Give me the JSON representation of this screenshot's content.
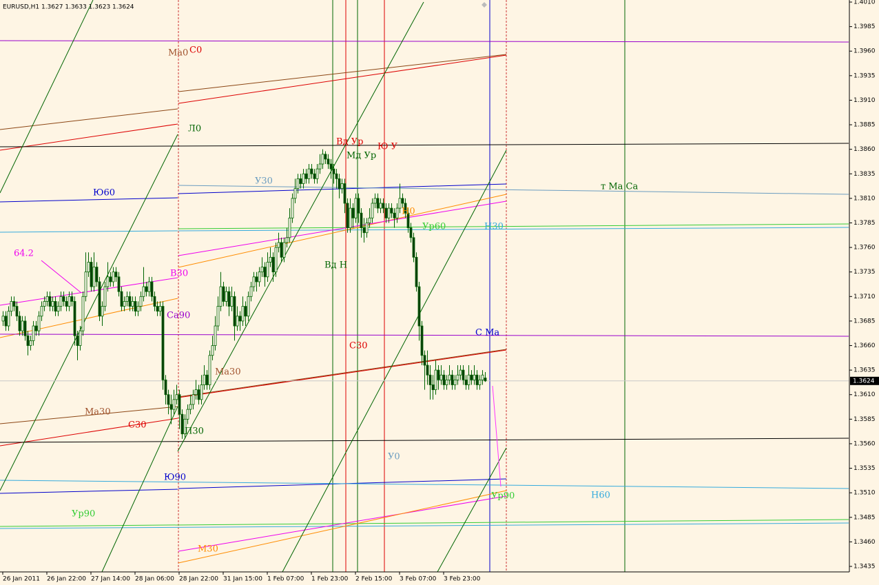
{
  "chart_data": {
    "type": "candlestick",
    "title": "EURUSD,H1  1.3627 1.3633 1.3623 1.3624",
    "color": "#006400",
    "up_fill": "#fff8ee",
    "down_fill": "#0a3d0a",
    "bid": 1.3624,
    "ylim": [
      1.3435,
      1.401
    ],
    "yticks": [
      1.3435,
      {
        "value": 1.346,
        "label": "1.3460"
      },
      1.3485,
      {
        "value": 1.351,
        "label": "1.3510"
      },
      1.3535,
      {
        "value": 1.356,
        "label": "1.3560"
      },
      1.3585,
      {
        "value": 1.361,
        "label": "1.3610"
      },
      1.3635,
      {
        "value": 1.366,
        "label": "1.3660"
      },
      1.3685,
      {
        "value": 1.371,
        "label": "1.3710"
      },
      1.3735,
      {
        "value": 1.376,
        "label": "1.3760"
      },
      1.3785,
      {
        "value": 1.381,
        "label": "1.3810"
      },
      1.3835,
      {
        "value": 1.386,
        "label": "1.3860"
      },
      1.3885,
      {
        "value": 1.391,
        "label": "1.3910"
      },
      1.3935,
      {
        "value": 1.396,
        "label": "1.3960"
      },
      1.3985,
      {
        "value": 1.401,
        "label": "1.4010"
      }
    ],
    "xlim": [
      -1,
      307
    ],
    "xticks": [
      {
        "value": 0,
        "label": "26 Jan 2011"
      },
      {
        "value": 16,
        "label": "26 Jan 22:00"
      },
      {
        "value": 32,
        "label": "27 Jan 14:00"
      },
      {
        "value": 48,
        "label": "28 Jan 06:00"
      },
      {
        "value": 64,
        "label": "28 Jan 22:00"
      },
      {
        "value": 80,
        "label": "31 Jan 15:00"
      },
      {
        "value": 96,
        "label": "1 Feb 07:00"
      },
      {
        "value": 112,
        "label": "1 Feb 23:00"
      },
      {
        "value": 128,
        "label": "2 Feb 15:00"
      },
      {
        "value": 144,
        "label": "3 Feb 07:00"
      },
      {
        "value": 160,
        "label": "3 Feb 23:00"
      }
    ],
    "candles": [
      [
        1.3685,
        1.3695,
        1.368,
        1.369
      ],
      [
        1.369,
        1.3695,
        1.3675,
        1.368
      ],
      [
        1.368,
        1.37,
        1.3675,
        1.3695
      ],
      [
        1.3695,
        1.371,
        1.369,
        1.3705
      ],
      [
        1.3705,
        1.371,
        1.3695,
        1.37
      ],
      [
        1.37,
        1.3705,
        1.3685,
        1.369
      ],
      [
        1.369,
        1.3695,
        1.367,
        1.3675
      ],
      [
        1.3675,
        1.369,
        1.367,
        1.3685
      ],
      [
        1.3685,
        1.369,
        1.3665,
        1.367
      ],
      [
        1.367,
        1.3675,
        1.365,
        1.366
      ],
      [
        1.366,
        1.367,
        1.3655,
        1.3665
      ],
      [
        1.3665,
        1.3685,
        1.366,
        1.368
      ],
      [
        1.368,
        1.3685,
        1.367,
        1.3675
      ],
      [
        1.3675,
        1.3695,
        1.367,
        1.369
      ],
      [
        1.369,
        1.3705,
        1.3685,
        1.37
      ],
      [
        1.37,
        1.371,
        1.3695,
        1.3705
      ],
      [
        1.3705,
        1.3715,
        1.37,
        1.371
      ],
      [
        1.371,
        1.3715,
        1.3695,
        1.37
      ],
      [
        1.37,
        1.371,
        1.3695,
        1.3705
      ],
      [
        1.3705,
        1.371,
        1.369,
        1.3695
      ],
      [
        1.3695,
        1.3705,
        1.369,
        1.37
      ],
      [
        1.37,
        1.3715,
        1.3695,
        1.371
      ],
      [
        1.371,
        1.3715,
        1.37,
        1.3705
      ],
      [
        1.3705,
        1.371,
        1.3695,
        1.37
      ],
      [
        1.37,
        1.3715,
        1.3695,
        1.371
      ],
      [
        1.371,
        1.3715,
        1.37,
        1.3705
      ],
      [
        1.3705,
        1.371,
        1.366,
        1.367
      ],
      [
        1.367,
        1.3675,
        1.3645,
        1.366
      ],
      [
        1.366,
        1.368,
        1.3655,
        1.3675
      ],
      [
        1.3675,
        1.3715,
        1.367,
        1.371
      ],
      [
        1.371,
        1.3755,
        1.3705,
        1.3735
      ],
      [
        1.3735,
        1.3755,
        1.373,
        1.3745
      ],
      [
        1.3745,
        1.375,
        1.3715,
        1.372
      ],
      [
        1.372,
        1.3755,
        1.3715,
        1.374
      ],
      [
        1.374,
        1.3745,
        1.372,
        1.3725
      ],
      [
        1.3725,
        1.373,
        1.3685,
        1.369
      ],
      [
        1.369,
        1.3705,
        1.368,
        1.37
      ],
      [
        1.37,
        1.3725,
        1.3695,
        1.372
      ],
      [
        1.372,
        1.3745,
        1.3715,
        1.373
      ],
      [
        1.373,
        1.3735,
        1.372,
        1.3725
      ],
      [
        1.3725,
        1.374,
        1.372,
        1.3735
      ],
      [
        1.3735,
        1.374,
        1.3725,
        1.373
      ],
      [
        1.373,
        1.3735,
        1.371,
        1.3715
      ],
      [
        1.3715,
        1.372,
        1.3695,
        1.37
      ],
      [
        1.37,
        1.371,
        1.3695,
        1.3705
      ],
      [
        1.3705,
        1.3715,
        1.37,
        1.371
      ],
      [
        1.371,
        1.3715,
        1.3695,
        1.37
      ],
      [
        1.37,
        1.371,
        1.3695,
        1.3705
      ],
      [
        1.3705,
        1.371,
        1.369,
        1.3695
      ],
      [
        1.3695,
        1.3705,
        1.369,
        1.37
      ],
      [
        1.37,
        1.3715,
        1.3695,
        1.371
      ],
      [
        1.371,
        1.374,
        1.3705,
        1.372
      ],
      [
        1.372,
        1.3725,
        1.371,
        1.3715
      ],
      [
        1.3715,
        1.373,
        1.371,
        1.3725
      ],
      [
        1.3725,
        1.373,
        1.3705,
        1.371
      ],
      [
        1.371,
        1.3715,
        1.3695,
        1.37
      ],
      [
        1.37,
        1.3705,
        1.369,
        1.3695
      ],
      [
        1.3695,
        1.3705,
        1.369,
        1.37
      ],
      [
        1.37,
        1.3705,
        1.3615,
        1.3625
      ],
      [
        1.3625,
        1.363,
        1.36,
        1.361
      ],
      [
        1.361,
        1.3615,
        1.359,
        1.36
      ],
      [
        1.36,
        1.361,
        1.358,
        1.3595
      ],
      [
        1.3595,
        1.3615,
        1.359,
        1.3605
      ],
      [
        1.3605,
        1.362,
        1.36,
        1.361
      ],
      [
        1.361,
        1.3615,
        1.3575,
        1.359
      ],
      [
        1.359,
        1.3595,
        1.3565,
        1.357
      ],
      [
        1.357,
        1.359,
        1.3565,
        1.3585
      ],
      [
        1.3585,
        1.36,
        1.358,
        1.3595
      ],
      [
        1.3595,
        1.361,
        1.359,
        1.36
      ],
      [
        1.36,
        1.3615,
        1.3595,
        1.361
      ],
      [
        1.361,
        1.3625,
        1.3605,
        1.3615
      ],
      [
        1.3615,
        1.362,
        1.36,
        1.3605
      ],
      [
        1.3605,
        1.363,
        1.36,
        1.362
      ],
      [
        1.362,
        1.364,
        1.3615,
        1.363
      ],
      [
        1.363,
        1.3635,
        1.3615,
        1.362
      ],
      [
        1.362,
        1.3655,
        1.3615,
        1.365
      ],
      [
        1.365,
        1.367,
        1.3645,
        1.366
      ],
      [
        1.366,
        1.369,
        1.3655,
        1.368
      ],
      [
        1.368,
        1.371,
        1.3675,
        1.37
      ],
      [
        1.37,
        1.3735,
        1.3695,
        1.372
      ],
      [
        1.372,
        1.3725,
        1.37,
        1.3705
      ],
      [
        1.3705,
        1.372,
        1.37,
        1.3715
      ],
      [
        1.3715,
        1.372,
        1.369,
        1.37
      ],
      [
        1.37,
        1.372,
        1.3695,
        1.371
      ],
      [
        1.371,
        1.3715,
        1.3665,
        1.368
      ],
      [
        1.368,
        1.37,
        1.3675,
        1.369
      ],
      [
        1.369,
        1.3695,
        1.3675,
        1.3685
      ],
      [
        1.3685,
        1.371,
        1.368,
        1.37
      ],
      [
        1.37,
        1.3705,
        1.368,
        1.369
      ],
      [
        1.369,
        1.3715,
        1.3685,
        1.371
      ],
      [
        1.371,
        1.3725,
        1.3705,
        1.372
      ],
      [
        1.372,
        1.3735,
        1.3715,
        1.373
      ],
      [
        1.373,
        1.3735,
        1.3715,
        1.3725
      ],
      [
        1.3725,
        1.374,
        1.372,
        1.3735
      ],
      [
        1.3735,
        1.375,
        1.373,
        1.374
      ],
      [
        1.374,
        1.3745,
        1.372,
        1.373
      ],
      [
        1.373,
        1.3755,
        1.3725,
        1.3745
      ],
      [
        1.3745,
        1.376,
        1.374,
        1.375
      ],
      [
        1.375,
        1.3755,
        1.3725,
        1.3735
      ],
      [
        1.3735,
        1.3765,
        1.373,
        1.376
      ],
      [
        1.376,
        1.3775,
        1.3755,
        1.3765
      ],
      [
        1.3765,
        1.377,
        1.3745,
        1.375
      ],
      [
        1.375,
        1.377,
        1.3745,
        1.3765
      ],
      [
        1.3765,
        1.378,
        1.376,
        1.377
      ],
      [
        1.377,
        1.38,
        1.3765,
        1.379
      ],
      [
        1.379,
        1.3815,
        1.3785,
        1.381
      ],
      [
        1.381,
        1.383,
        1.3805,
        1.382
      ],
      [
        1.382,
        1.3835,
        1.3815,
        1.383
      ],
      [
        1.383,
        1.3835,
        1.382,
        1.3825
      ],
      [
        1.3825,
        1.384,
        1.382,
        1.3835
      ],
      [
        1.3835,
        1.384,
        1.3825,
        1.383
      ],
      [
        1.383,
        1.3845,
        1.3825,
        1.384
      ],
      [
        1.384,
        1.3845,
        1.383,
        1.3835
      ],
      [
        1.3835,
        1.384,
        1.3825,
        1.383
      ],
      [
        1.383,
        1.3845,
        1.3825,
        1.384
      ],
      [
        1.384,
        1.3855,
        1.3835,
        1.3845
      ],
      [
        1.3845,
        1.386,
        1.384,
        1.3855
      ],
      [
        1.3855,
        1.3858,
        1.3845,
        1.385
      ],
      [
        1.385,
        1.3855,
        1.384,
        1.3845
      ],
      [
        1.3845,
        1.385,
        1.383,
        1.384
      ],
      [
        1.384,
        1.3845,
        1.3825,
        1.3835
      ],
      [
        1.3835,
        1.384,
        1.382,
        1.383
      ],
      [
        1.383,
        1.3835,
        1.381,
        1.382
      ],
      [
        1.382,
        1.383,
        1.3815,
        1.3825
      ],
      [
        1.3825,
        1.383,
        1.3795,
        1.3805
      ],
      [
        1.3805,
        1.381,
        1.3775,
        1.378
      ],
      [
        1.378,
        1.381,
        1.3775,
        1.38
      ],
      [
        1.38,
        1.3805,
        1.378,
        1.379
      ],
      [
        1.379,
        1.3815,
        1.3785,
        1.381
      ],
      [
        1.381,
        1.3815,
        1.3785,
        1.3795
      ],
      [
        1.3795,
        1.38,
        1.377,
        1.378
      ],
      [
        1.378,
        1.379,
        1.3765,
        1.3775
      ],
      [
        1.3775,
        1.379,
        1.377,
        1.3785
      ],
      [
        1.3785,
        1.38,
        1.378,
        1.379
      ],
      [
        1.379,
        1.381,
        1.3785,
        1.3805
      ],
      [
        1.3805,
        1.3815,
        1.38,
        1.381
      ],
      [
        1.381,
        1.3815,
        1.3795,
        1.38
      ],
      [
        1.38,
        1.381,
        1.3795,
        1.3805
      ],
      [
        1.3805,
        1.381,
        1.3795,
        1.38
      ],
      [
        1.38,
        1.3805,
        1.3785,
        1.379
      ],
      [
        1.379,
        1.3805,
        1.3785,
        1.38
      ],
      [
        1.38,
        1.3805,
        1.379,
        1.3795
      ],
      [
        1.3795,
        1.38,
        1.378,
        1.379
      ],
      [
        1.379,
        1.3805,
        1.3785,
        1.38
      ],
      [
        1.38,
        1.3825,
        1.3795,
        1.381
      ],
      [
        1.381,
        1.3815,
        1.38,
        1.3805
      ],
      [
        1.3805,
        1.381,
        1.379,
        1.3795
      ],
      [
        1.3795,
        1.38,
        1.3775,
        1.378
      ],
      [
        1.378,
        1.3785,
        1.3765,
        1.377
      ],
      [
        1.377,
        1.3775,
        1.3745,
        1.375
      ],
      [
        1.375,
        1.3755,
        1.3715,
        1.372
      ],
      [
        1.372,
        1.3725,
        1.3665,
        1.368
      ],
      [
        1.368,
        1.3685,
        1.364,
        1.365
      ],
      [
        1.365,
        1.3655,
        1.3615,
        1.364
      ],
      [
        1.364,
        1.3655,
        1.362,
        1.363
      ],
      [
        1.363,
        1.364,
        1.3605,
        1.362
      ],
      [
        1.362,
        1.363,
        1.3605,
        1.3615
      ],
      [
        1.3615,
        1.3645,
        1.361,
        1.3635
      ],
      [
        1.3635,
        1.364,
        1.3615,
        1.3625
      ],
      [
        1.3625,
        1.364,
        1.362,
        1.363
      ],
      [
        1.363,
        1.3635,
        1.3615,
        1.362
      ],
      [
        1.362,
        1.363,
        1.3615,
        1.3625
      ],
      [
        1.3625,
        1.364,
        1.362,
        1.363
      ],
      [
        1.363,
        1.3635,
        1.3615,
        1.362
      ],
      [
        1.362,
        1.363,
        1.3615,
        1.3625
      ],
      [
        1.3625,
        1.364,
        1.362,
        1.363
      ],
      [
        1.363,
        1.364,
        1.3625,
        1.3635
      ],
      [
        1.3635,
        1.364,
        1.362,
        1.3625
      ],
      [
        1.3625,
        1.363,
        1.3615,
        1.362
      ],
      [
        1.362,
        1.364,
        1.3615,
        1.363
      ],
      [
        1.363,
        1.3635,
        1.362,
        1.3625
      ],
      [
        1.3625,
        1.364,
        1.362,
        1.363
      ],
      [
        1.363,
        1.3635,
        1.3615,
        1.362
      ],
      [
        1.362,
        1.363,
        1.3615,
        1.3625
      ],
      [
        1.3625,
        1.3635,
        1.362,
        1.363
      ],
      [
        1.3627,
        1.3633,
        1.3623,
        1.3624
      ]
    ],
    "annotations": [
      {
        "text": "Ма0",
        "color": "#a0522d"
      },
      {
        "text": "С0",
        "color": "#dd0000"
      },
      {
        "text": "Л0",
        "color": "#006400"
      },
      {
        "text": "Вд Ур",
        "color": "#dd0000"
      },
      {
        "text": "Мд Ур",
        "color": "#006400"
      },
      {
        "text": "Ю У",
        "color": "#dd0000"
      },
      {
        "text": "У30",
        "color": "#6a9cc0"
      },
      {
        "text": "Ю60",
        "color": "#0000cc"
      },
      {
        "text": "т Ма Са",
        "color": "#006400"
      },
      {
        "text": "Н0",
        "color": "#ff8c00"
      },
      {
        "text": "Ур60",
        "color": "#33cc33"
      },
      {
        "text": "Н30",
        "color": "#33aadd"
      },
      {
        "text": "64.2",
        "color": "#ee00ee"
      },
      {
        "text": "В30",
        "color": "#ee00ee"
      },
      {
        "text": "Вд Н",
        "color": "#006400"
      },
      {
        "text": "Са90",
        "color": "#9900cc"
      },
      {
        "text": "С Ма",
        "color": "#0000cc"
      },
      {
        "text": "С30",
        "color": "#dd0000"
      },
      {
        "text": "Ма30",
        "color": "#a0522d"
      },
      {
        "text": "Ма30",
        "color": "#a0522d"
      },
      {
        "text": "С30",
        "color": "#dd0000"
      },
      {
        "text": "П30",
        "color": "#006400"
      },
      {
        "text": "У0",
        "color": "#6a9cc0"
      },
      {
        "text": "Ю90",
        "color": "#0000cc"
      },
      {
        "text": "Ур90",
        "color": "#33cc33"
      },
      {
        "text": "Ур90",
        "color": "#33cc33"
      },
      {
        "text": "Н60",
        "color": "#33aadd"
      },
      {
        "text": "М30",
        "color": "#ff8c00"
      }
    ]
  }
}
